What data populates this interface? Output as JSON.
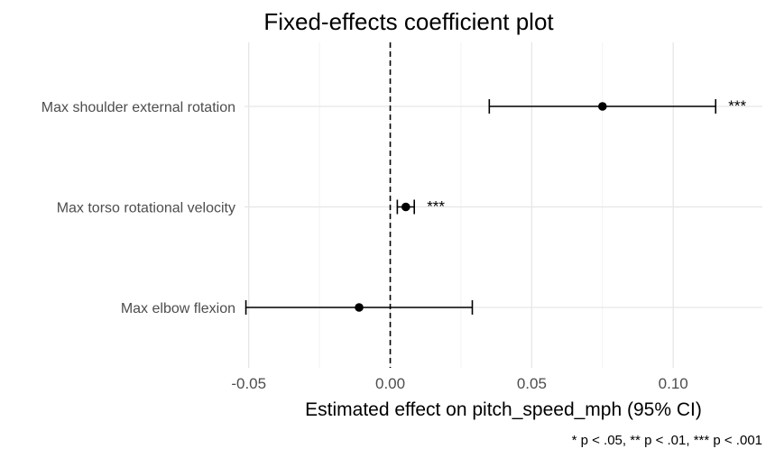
{
  "chart_data": {
    "type": "coefficient-plot",
    "title": "Fixed-effects coefficient plot",
    "xlabel": "Estimated effect on pitch_speed_mph (95% CI)",
    "caption": "* p < .05, ** p < .01, *** p < .001",
    "xlim": [
      -0.0515,
      0.1315
    ],
    "x_ticks": [
      -0.05,
      0.0,
      0.05,
      0.1
    ],
    "x_tick_labels": [
      "-0.05",
      "0.00",
      "0.05",
      "0.10"
    ],
    "reference_line": 0,
    "grid": true,
    "terms": [
      {
        "label": "Max shoulder external rotation",
        "estimate": 0.075,
        "ci_low": 0.035,
        "ci_high": 0.115,
        "sig": "***"
      },
      {
        "label": "Max torso rotational velocity",
        "estimate": 0.0055,
        "ci_low": 0.0025,
        "ci_high": 0.0085,
        "sig": "***"
      },
      {
        "label": "Max elbow flexion",
        "estimate": -0.011,
        "ci_low": -0.051,
        "ci_high": 0.029,
        "sig": ""
      }
    ]
  }
}
